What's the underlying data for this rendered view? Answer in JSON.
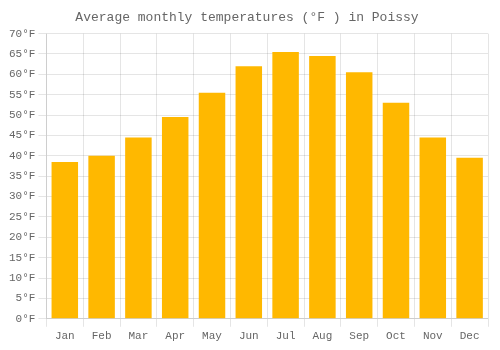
{
  "chart_data": {
    "type": "bar",
    "title": "Average monthly temperatures (°F ) in Poissy",
    "categories": [
      "Jan",
      "Feb",
      "Mar",
      "Apr",
      "May",
      "Jun",
      "Jul",
      "Aug",
      "Sep",
      "Oct",
      "Nov",
      "Dec"
    ],
    "values": [
      38.5,
      40.0,
      44.5,
      49.5,
      55.5,
      62.0,
      65.5,
      64.5,
      60.5,
      53.0,
      44.5,
      39.5
    ],
    "color": "#FFB800",
    "ylim": [
      0,
      70
    ],
    "yticks": [
      {
        "value": 0,
        "label": "0°F"
      },
      {
        "value": 5,
        "label": "5°F"
      },
      {
        "value": 10,
        "label": "10°F"
      },
      {
        "value": 15,
        "label": "15°F"
      },
      {
        "value": 20,
        "label": "20°F"
      },
      {
        "value": 25,
        "label": "25°F"
      },
      {
        "value": 30,
        "label": "30°F"
      },
      {
        "value": 35,
        "label": "35°F"
      },
      {
        "value": 40,
        "label": "40°F"
      },
      {
        "value": 45,
        "label": "45°F"
      },
      {
        "value": 50,
        "label": "50°F"
      },
      {
        "value": 55,
        "label": "55°F"
      },
      {
        "value": 60,
        "label": "60°F"
      },
      {
        "value": 65,
        "label": "65°F"
      },
      {
        "value": 70,
        "label": "70°F"
      }
    ],
    "grid": true
  }
}
